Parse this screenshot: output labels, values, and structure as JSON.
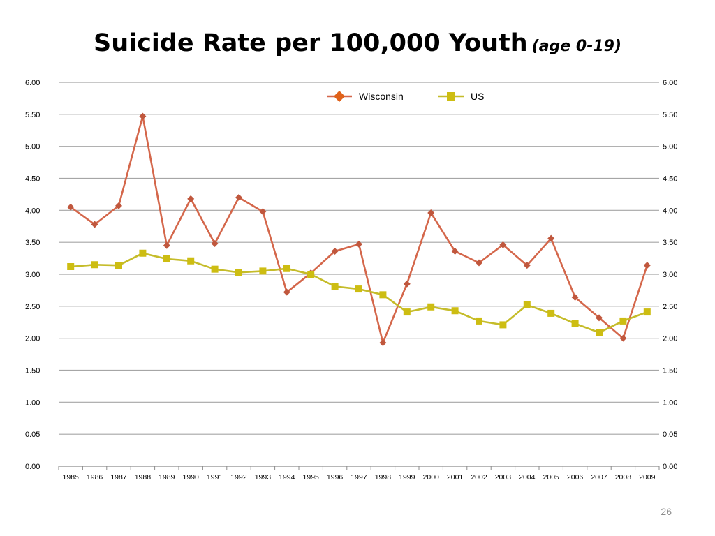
{
  "slide": {
    "title_main": "Suicide Rate per 100,000 Youth",
    "title_sub": "(age 0-19)",
    "page_number": "26"
  },
  "chart_data": {
    "type": "line",
    "title": "Suicide Rate per 100,000 Youth (age 0-19)",
    "xlabel": "",
    "ylabel": "",
    "categories": [
      "1985",
      "1986",
      "1987",
      "1988",
      "1989",
      "1990",
      "1991",
      "1992",
      "1993",
      "1994",
      "1995",
      "1996",
      "1997",
      "1998",
      "1999",
      "2000",
      "2001",
      "2002",
      "2003",
      "2004",
      "2005",
      "2006",
      "2007",
      "2008",
      "2009"
    ],
    "y_tick_labels": [
      "0.00",
      "0.05",
      "1.00",
      "1.50",
      "2.00",
      "2.50",
      "3.00",
      "3.50",
      "4.00",
      "4.50",
      "5.00",
      "5.50",
      "6.00"
    ],
    "ylim": [
      0,
      6
    ],
    "grid": true,
    "legend_position": "top-center",
    "series": [
      {
        "name": "Wisconsin",
        "color": "#d4674b",
        "marker_color": "#c0573d",
        "marker": "diamond",
        "values": [
          4.05,
          3.78,
          4.07,
          5.47,
          3.45,
          4.18,
          3.48,
          4.2,
          3.98,
          2.72,
          3.02,
          3.36,
          3.47,
          1.93,
          2.85,
          3.96,
          3.36,
          3.18,
          3.46,
          3.14,
          3.56,
          2.64,
          2.32,
          2.0,
          3.14
        ]
      },
      {
        "name": "US",
        "color": "#c5bc2a",
        "marker_color": "#cdbd12",
        "marker": "square",
        "values": [
          3.12,
          3.15,
          3.14,
          3.33,
          3.24,
          3.21,
          3.08,
          3.03,
          3.05,
          3.09,
          3.0,
          2.81,
          2.77,
          2.68,
          2.41,
          2.49,
          2.43,
          2.27,
          2.21,
          2.52,
          2.39,
          2.23,
          2.09,
          2.27,
          2.41
        ]
      }
    ]
  }
}
